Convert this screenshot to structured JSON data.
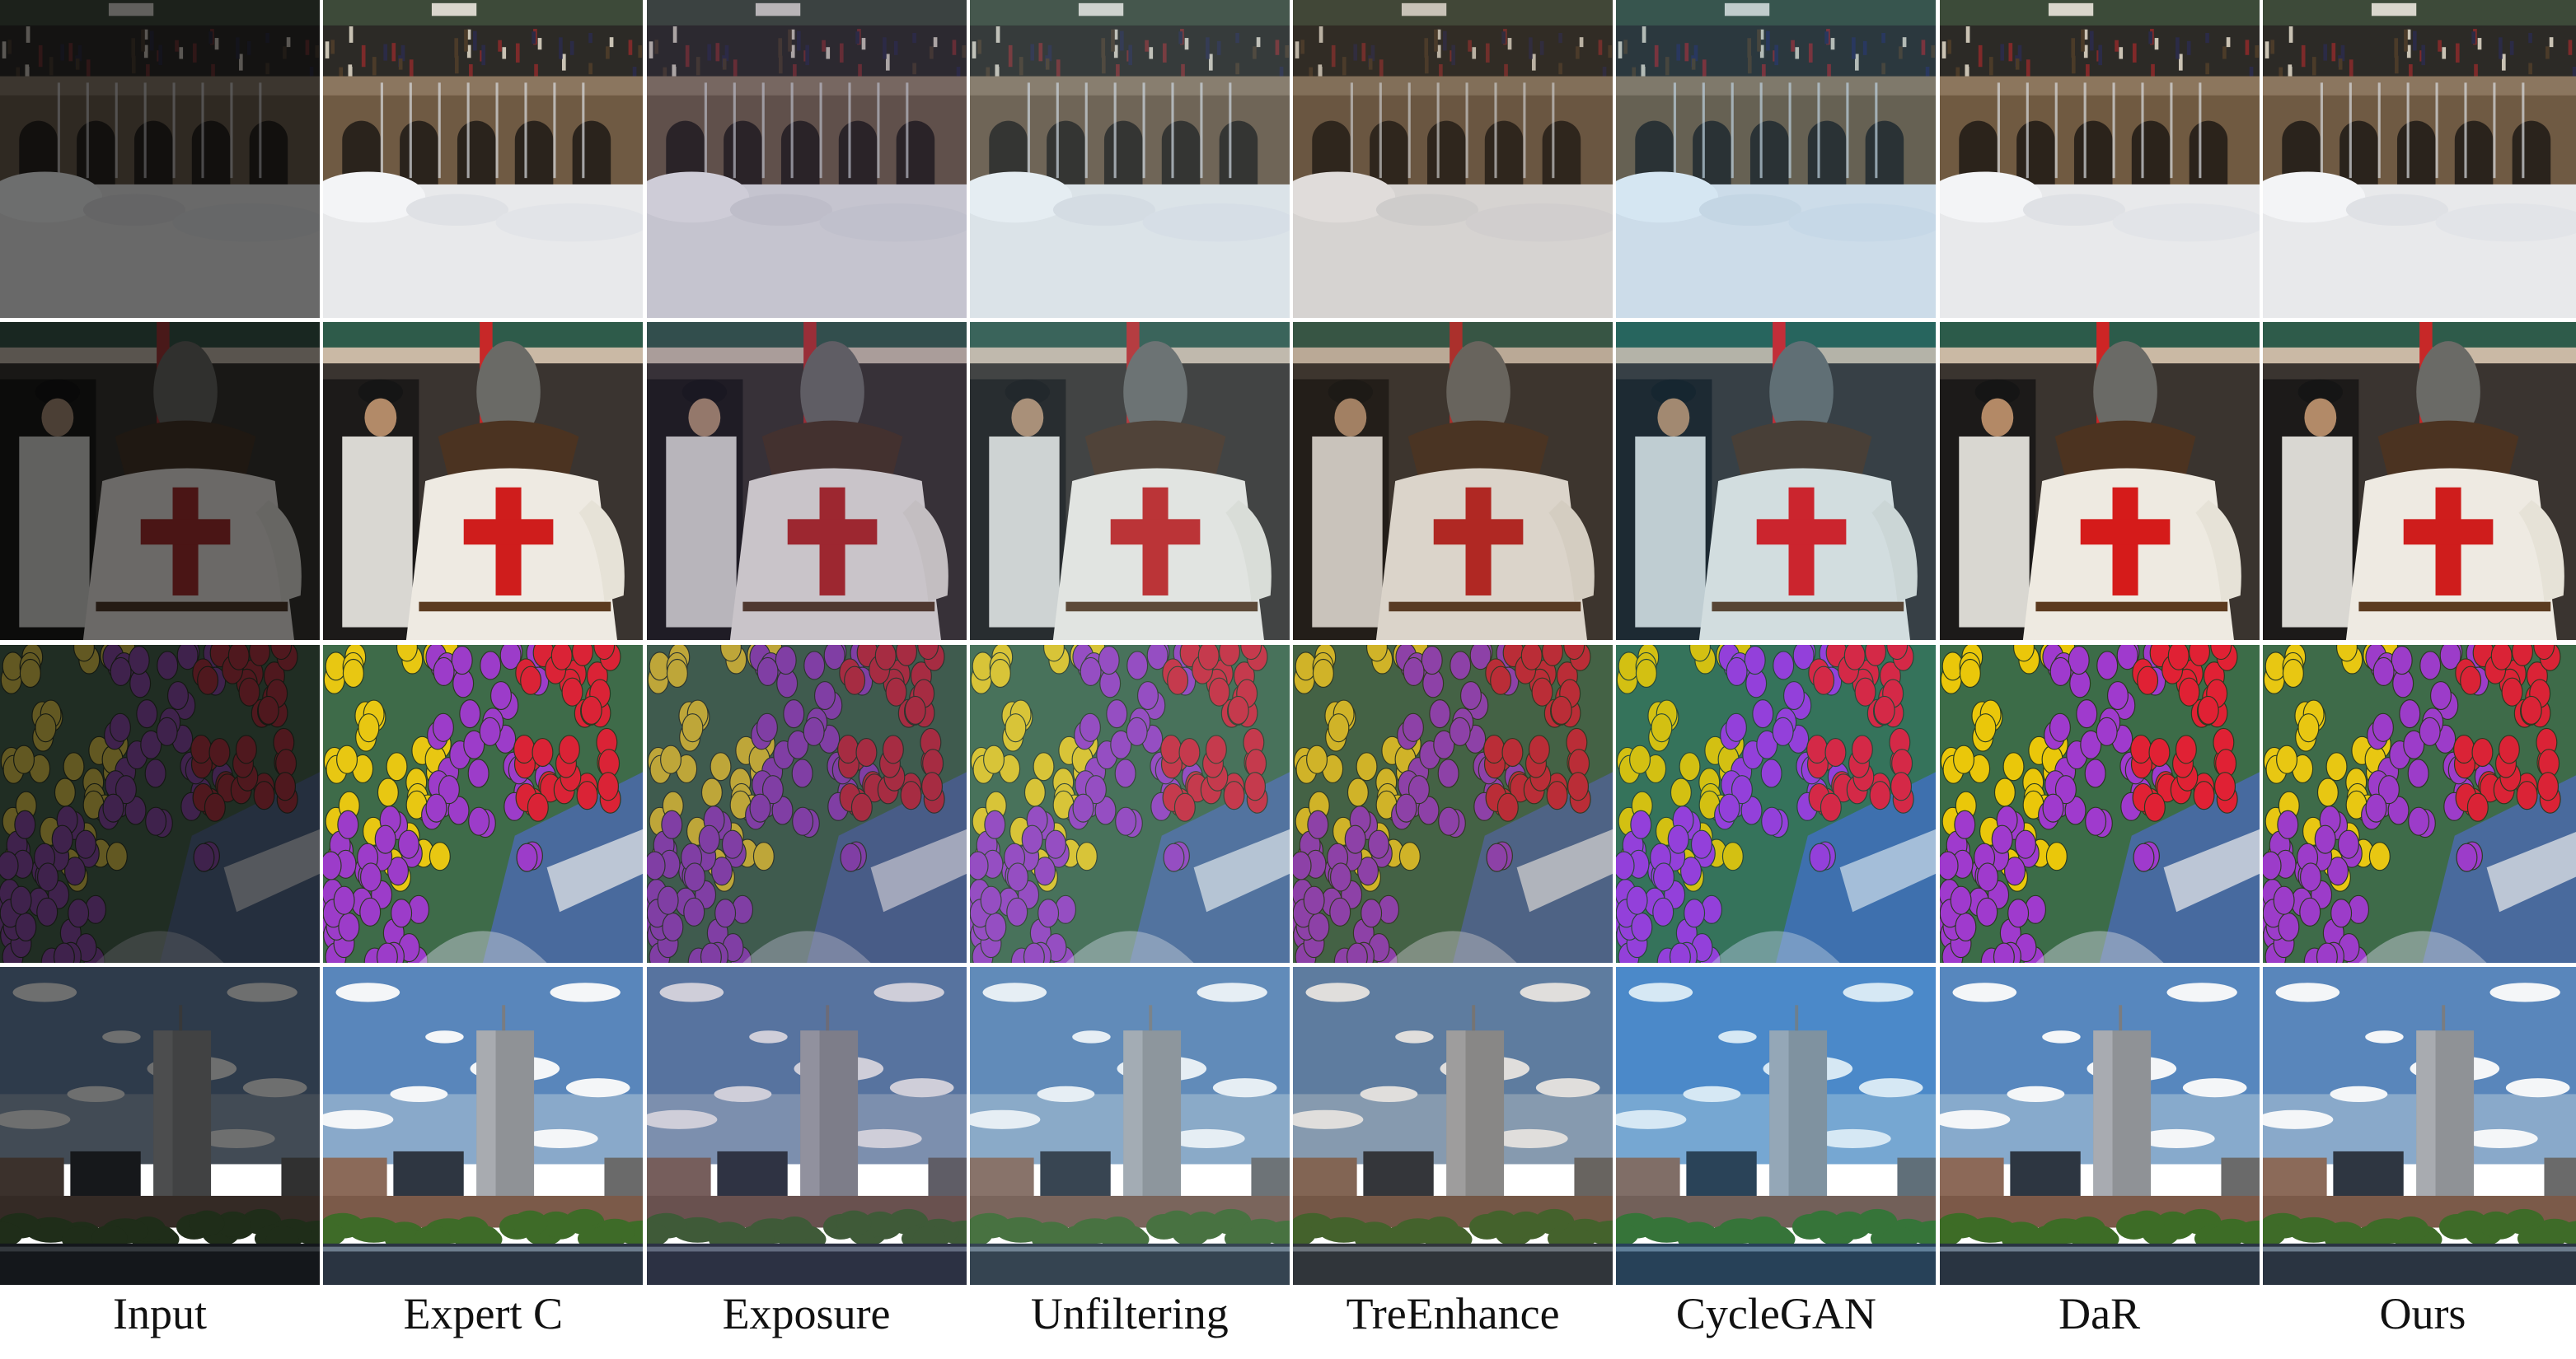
{
  "figure": {
    "columns": [
      {
        "id": "input",
        "label": "Input",
        "tone": {
          "brightness": 0.45,
          "saturation": 0.7,
          "tint": "#000000",
          "tint_amount": 0.0
        }
      },
      {
        "id": "expert-c",
        "label": "Expert C",
        "tone": {
          "brightness": 1.0,
          "saturation": 1.05,
          "tint": "#000000",
          "tint_amount": 0.0
        }
      },
      {
        "id": "exposure",
        "label": "Exposure",
        "tone": {
          "brightness": 0.92,
          "saturation": 0.85,
          "tint": "#4a3a8a",
          "tint_amount": 0.12
        }
      },
      {
        "id": "unfiltering",
        "label": "Unfiltering",
        "tone": {
          "brightness": 1.0,
          "saturation": 0.95,
          "tint": "#7fb6d6",
          "tint_amount": 0.12
        }
      },
      {
        "id": "treenhance",
        "label": "TreEnhance",
        "tone": {
          "brightness": 0.95,
          "saturation": 0.9,
          "tint": "#8a5a2a",
          "tint_amount": 0.08
        }
      },
      {
        "id": "cyclegan",
        "label": "CycleGAN",
        "tone": {
          "brightness": 1.0,
          "saturation": 1.25,
          "tint": "#1f8fd8",
          "tint_amount": 0.14
        }
      },
      {
        "id": "dar",
        "label": "DaR",
        "tone": {
          "brightness": 1.0,
          "saturation": 1.1,
          "tint": "#000000",
          "tint_amount": 0.0
        }
      },
      {
        "id": "ours",
        "label": "Ours",
        "tone": {
          "brightness": 1.0,
          "saturation": 1.05,
          "tint": "#000000",
          "tint_amount": 0.0
        }
      }
    ],
    "rows": [
      {
        "id": "fountain-snow",
        "scene": "fountain"
      },
      {
        "id": "knight-crusader",
        "scene": "knight"
      },
      {
        "id": "tulips",
        "scene": "tulips"
      },
      {
        "id": "city-tower",
        "scene": "city"
      }
    ]
  }
}
